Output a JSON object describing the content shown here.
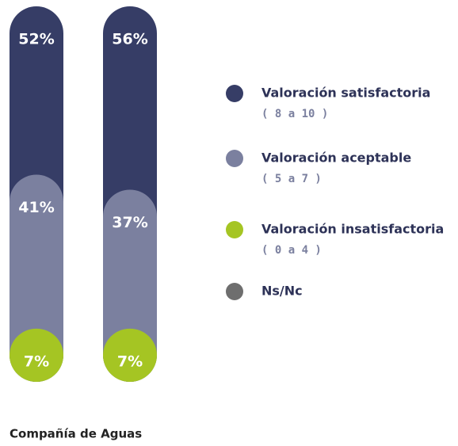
{
  "chart_data": {
    "type": "stacked-pill",
    "categories": [
      null,
      null
    ],
    "series": [
      {
        "name": "Valoración satisfactoria",
        "range": "( 8 a 10 )",
        "color": "#363d66",
        "values": [
          52,
          56
        ],
        "value_labels": [
          "52%",
          "56%"
        ]
      },
      {
        "name": "Valoración aceptable",
        "range": "( 5 a 7 )",
        "color": "#7b809f",
        "values": [
          41,
          37
        ],
        "value_labels": [
          "41%",
          "37%"
        ]
      },
      {
        "name": "Valoración insatisfactoria",
        "range": "( 0 a 4 )",
        "color": "#a5c523",
        "values": [
          7,
          7
        ],
        "value_labels": [
          "7%",
          "7%"
        ]
      },
      {
        "name": "Ns/Nc",
        "color": "#6e6e6e",
        "values": [
          0,
          0
        ]
      }
    ],
    "ylim": [
      0,
      100
    ],
    "xlabel": "Compañía de Aguas"
  }
}
